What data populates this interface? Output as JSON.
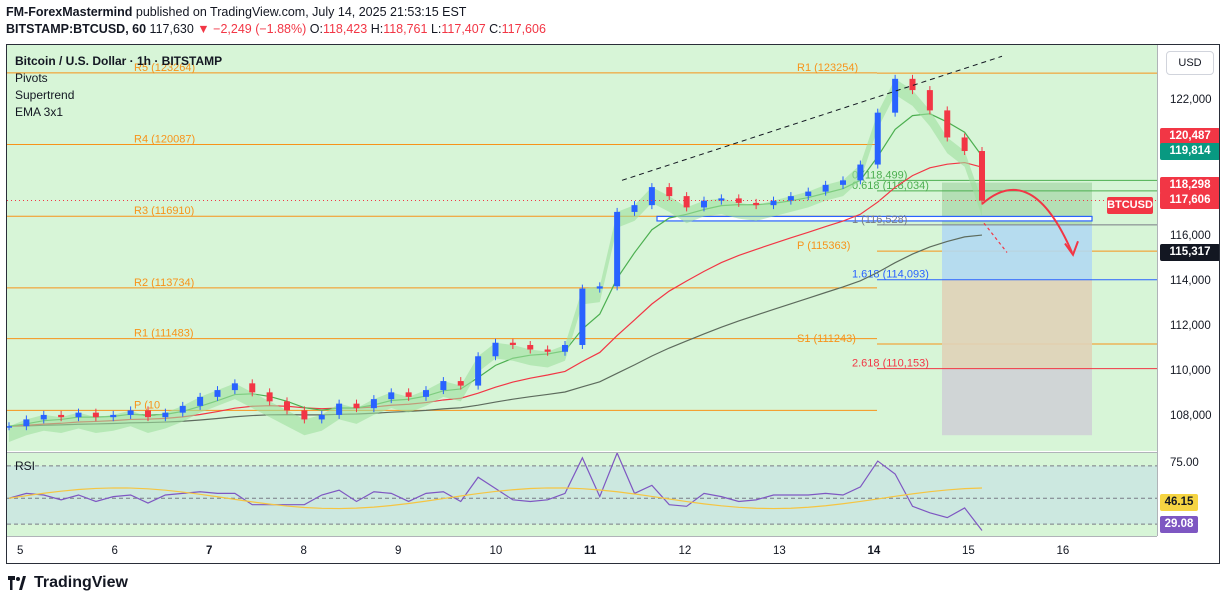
{
  "header": {
    "author": "FM-ForexMastermind",
    "published": "published on TradingView.com, July 14, 2025 21:53:15 EST",
    "symbol": "BITSTAMP:BTCUSD, 60",
    "last": "117,630",
    "change": "▼ −2,249 (−1.88%)",
    "o_label": "O:",
    "o_val": "118,423",
    "h_label": "H:",
    "h_val": "118,761",
    "l_label": "L:",
    "l_val": "117,407",
    "c_label": "C:",
    "c_val": "117,606"
  },
  "legend": {
    "title": "Bitcoin / U.S. Dollar · 1h · BITSTAMP",
    "indicators": [
      "Pivots",
      "Supertrend",
      "EMA 3x1"
    ]
  },
  "rsi_label": "RSI",
  "currency": "USD",
  "footer_brand": "TradingView",
  "colors": {
    "bg": "#d7f5d7",
    "up": "#2962ff",
    "down": "#f23645",
    "pivot": "#f7931a",
    "ema_red": "#f23645",
    "ema_green": "#4caf50",
    "ema_dark": "#5d6b5d"
  },
  "chart_data": {
    "type": "candlestick",
    "instrument": "Bitcoin / U.S. Dollar",
    "interval": "1h",
    "ylim": [
      106500,
      124500
    ],
    "price_ticks": [
      "122,000",
      "120,000",
      "118,000",
      "116,000",
      "114,000",
      "112,000",
      "110,000",
      "108,000"
    ],
    "time_ticks": [
      "5",
      "6",
      "7",
      "8",
      "9",
      "10",
      "11",
      "12",
      "13",
      "14",
      "15",
      "16"
    ],
    "bold_time_ticks": [
      "7",
      "11",
      "14"
    ],
    "price_tags": [
      {
        "label": "120,487",
        "color": "#f23645",
        "price": 120487
      },
      {
        "label": "119,814",
        "color": "#089981",
        "price": 119814
      },
      {
        "label": "118,298",
        "color": "#f23645",
        "price": 118298
      },
      {
        "label": "117,606",
        "color": "#f23645",
        "price": 117606
      },
      {
        "label": "115,317",
        "color": "#131722",
        "price": 115317
      }
    ],
    "symbol_tag": "BTCUSD",
    "pivot_levels_left": [
      {
        "label": "R5 (123264)",
        "price": 123264
      },
      {
        "label": "R4 (120087)",
        "price": 120087
      },
      {
        "label": "R3 (116910)",
        "price": 116910
      },
      {
        "label": "R2 (113734)",
        "price": 113734
      },
      {
        "label": "R1 (111483)",
        "price": 111483
      },
      {
        "label": "P (10",
        "price": 108300
      }
    ],
    "pivot_levels_right": [
      {
        "label": "R1 (123254)",
        "price": 123254
      },
      {
        "label": "P (115363)",
        "price": 115363
      },
      {
        "label": "S1 (111243)",
        "price": 111243
      }
    ],
    "fib_levels": [
      {
        "label": "0 (118,499)",
        "price": 118499,
        "color": "#4caf50"
      },
      {
        "label": "0.618 (118,034)",
        "price": 118034,
        "color": "#4caf50"
      },
      {
        "label": "1 (116,528)",
        "price": 116528,
        "color": "#787b86"
      },
      {
        "label": "1.618 (114,093)",
        "price": 114093,
        "color": "#2962ff"
      },
      {
        "label": "2.618 (110,153)",
        "price": 110153,
        "color": "#f23645"
      }
    ],
    "rsi": {
      "levels": [
        "75.00",
        "46.15",
        "29.08"
      ],
      "current": 29.08,
      "ma": 46.15
    },
    "series": [
      {
        "name": "BTCUSD",
        "values": [
          107600,
          107900,
          108100,
          108000,
          108200,
          108000,
          108100,
          108300,
          108000,
          108200,
          108500,
          108900,
          109200,
          109500,
          109100,
          108700,
          108300,
          107900,
          108100,
          108600,
          108400,
          108800,
          109100,
          108900,
          109200,
          109600,
          109400,
          110700,
          111300,
          111200,
          111000,
          110900,
          111200,
          113700,
          113800,
          117100,
          117400,
          118200,
          117800,
          117300,
          117600,
          117700,
          117500,
          117400,
          117600,
          117800,
          118000,
          118300,
          118500,
          119200,
          121500,
          123000,
          122500,
          121600,
          120400,
          119800,
          117600
        ]
      }
    ]
  }
}
